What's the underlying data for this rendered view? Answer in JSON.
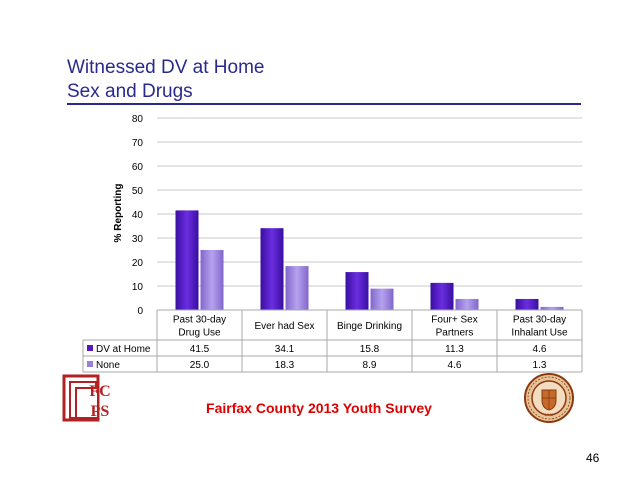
{
  "slide": {
    "title_line1": "Witnessed DV at Home",
    "title_line2": "Sex and Drugs",
    "footer": "Fairfax County 2013 Youth Survey",
    "page_number": "46"
  },
  "logos": {
    "left": {
      "text": "FCPS",
      "color": "#b22222"
    },
    "right": {
      "text": "Fairfax County seal",
      "year": "1742",
      "color": "#8b3a0e"
    }
  },
  "chart_data": {
    "type": "bar",
    "ylabel": "% Reporting",
    "ylim": [
      0,
      80
    ],
    "yticks": [
      0,
      10,
      20,
      30,
      40,
      50,
      60,
      70,
      80
    ],
    "grid": true,
    "categories": [
      [
        "Past 30-day",
        "Drug  Use"
      ],
      [
        "Ever had Sex"
      ],
      [
        "Binge Drinking"
      ],
      [
        "Four+ Sex",
        "Partners"
      ],
      [
        "Past 30-day",
        "Inhalant Use"
      ]
    ],
    "series": [
      {
        "name": "DV at Home",
        "values": [
          41.5,
          34.1,
          15.8,
          11.3,
          4.6
        ],
        "color": "#5518c0",
        "labels": [
          "41.5",
          "34.1",
          "15.8",
          "11.3",
          "4.6"
        ]
      },
      {
        "name": "None",
        "values": [
          25.0,
          18.3,
          8.9,
          4.6,
          1.3
        ],
        "color": "#9a80dc",
        "labels": [
          "25.0",
          "18.3",
          "8.9",
          "4.6",
          "1.3"
        ]
      }
    ]
  }
}
